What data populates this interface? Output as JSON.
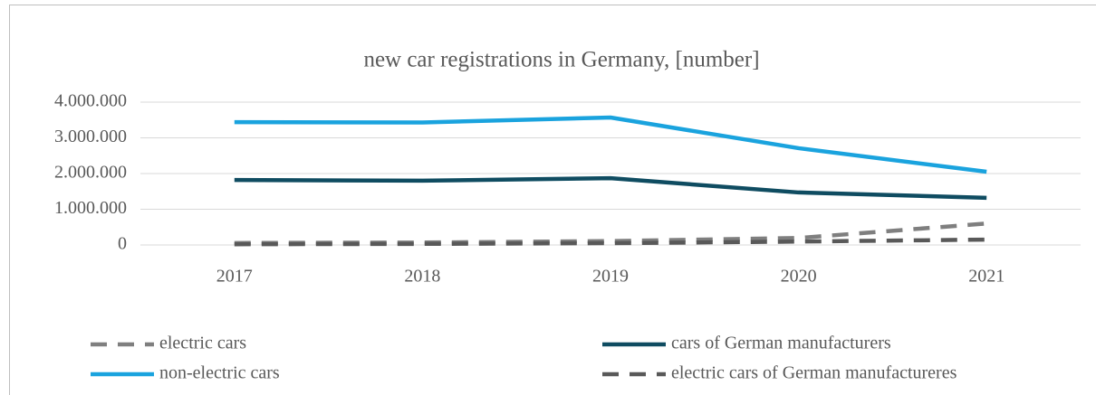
{
  "chart_data": {
    "type": "line",
    "title": "new car registrations in Germany, [number]",
    "categories": [
      "2017",
      "2018",
      "2019",
      "2020",
      "2021"
    ],
    "series": [
      {
        "name": "electric cars",
        "color": "#7f7f7f",
        "line_style": "dashed",
        "values": [
          55000,
          68000,
          108000,
          195000,
          600000
        ]
      },
      {
        "name": "cars of German manufacturers",
        "color": "#0f4c61",
        "line_style": "solid",
        "values": [
          1820000,
          1800000,
          1870000,
          1470000,
          1320000
        ]
      },
      {
        "name": "non-electric cars",
        "color": "#1aa3de",
        "line_style": "solid",
        "values": [
          3440000,
          3430000,
          3570000,
          2710000,
          2050000
        ]
      },
      {
        "name": "electric cars of German manufactureres",
        "color": "#595959",
        "line_style": "dashed",
        "values": [
          20000,
          30000,
          50000,
          95000,
          150000
        ]
      }
    ],
    "ylim": [
      0,
      4000000
    ],
    "yticks": [
      0,
      {
        "value": 1000000,
        "label": "1.000.000"
      },
      {
        "value": 2000000,
        "label": "2.000.000"
      },
      {
        "value": 3000000,
        "label": "3.000.000"
      },
      {
        "value": 4000000,
        "label": "4.000.000"
      }
    ],
    "grid": true,
    "legend": "bottom"
  }
}
